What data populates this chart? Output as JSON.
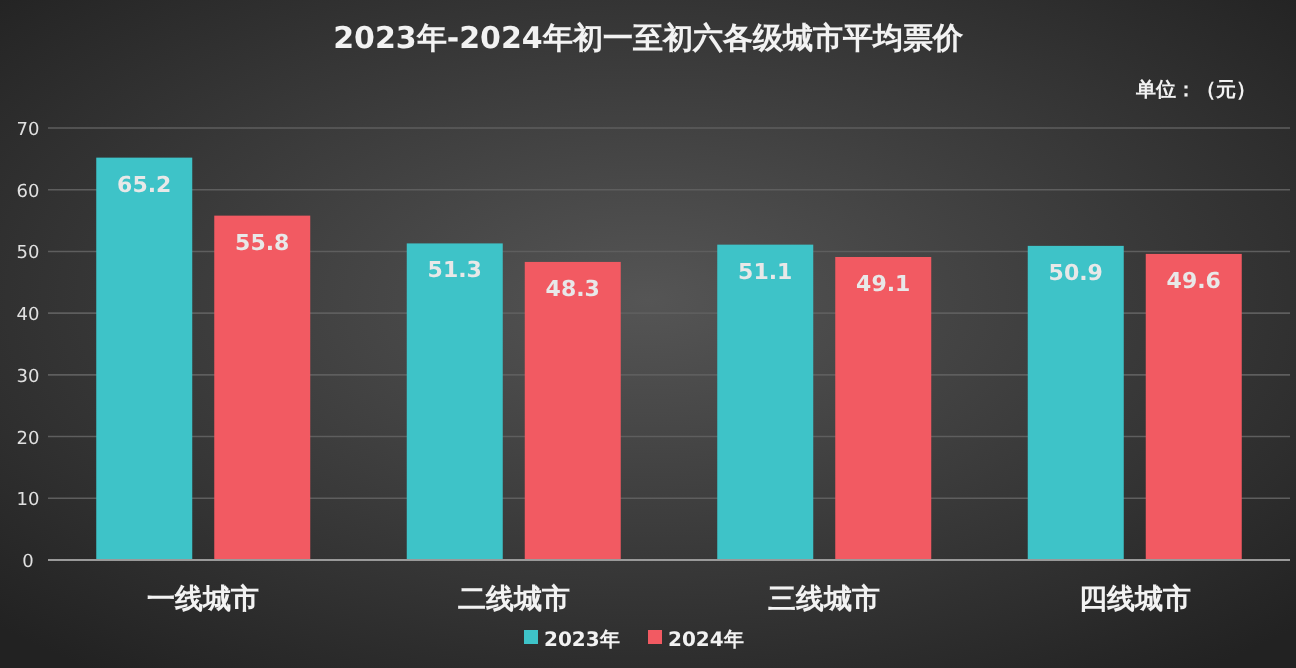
{
  "chart_data": {
    "type": "bar",
    "title": "2023年-2024年初一至初六各级城市平均票价",
    "annotations": [
      "单位：（元）"
    ],
    "categories": [
      "一线城市",
      "二线城市",
      "三线城市",
      "四线城市"
    ],
    "series": [
      {
        "name": "2023年",
        "color": "#3ec3c8",
        "values": [
          65.2,
          51.3,
          51.1,
          50.9
        ]
      },
      {
        "name": "2024年",
        "color": "#f25a62",
        "values": [
          55.8,
          48.3,
          49.1,
          49.6
        ]
      }
    ],
    "ylim": [
      0,
      70
    ],
    "yticks": [
      0,
      10,
      20,
      30,
      40,
      50,
      60,
      70
    ],
    "grid": "y",
    "legend": "bottom",
    "data_labels": true
  }
}
